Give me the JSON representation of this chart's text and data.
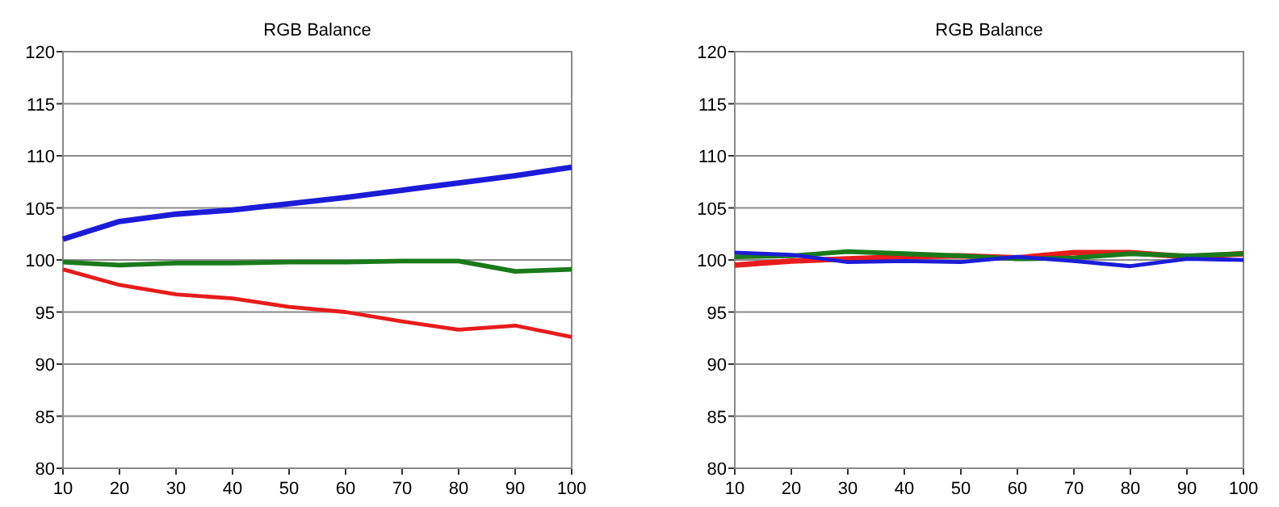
{
  "chart_data": [
    {
      "type": "line",
      "title": "RGB Balance",
      "x": [
        10,
        20,
        30,
        40,
        50,
        60,
        70,
        80,
        90,
        100
      ],
      "xlim": [
        10,
        100
      ],
      "xticks": [
        10,
        20,
        30,
        40,
        50,
        60,
        70,
        80,
        90,
        100
      ],
      "ylim": [
        80,
        120
      ],
      "yticks": [
        80,
        85,
        90,
        95,
        100,
        105,
        110,
        115,
        120
      ],
      "grid": "y",
      "series": [
        {
          "color": "#1c1cd8",
          "values": [
            102,
            103.7,
            104.4,
            104.8,
            105.4,
            106,
            106.7,
            107.4,
            108.1,
            108.9
          ]
        },
        {
          "color": "#1a7a1a",
          "values": [
            99.8,
            99.5,
            99.7,
            99.7,
            99.8,
            99.8,
            99.9,
            99.9,
            98.9,
            99.1
          ]
        },
        {
          "color": "#e81c1c",
          "values": [
            99.1,
            97.6,
            96.7,
            96.3,
            95.5,
            95,
            94.1,
            93.3,
            93.7,
            92.6
          ]
        }
      ]
    },
    {
      "type": "line",
      "title": "RGB Balance",
      "x": [
        10,
        20,
        30,
        40,
        50,
        60,
        70,
        80,
        90,
        100
      ],
      "xlim": [
        10,
        100
      ],
      "xticks": [
        10,
        20,
        30,
        40,
        50,
        60,
        70,
        80,
        90,
        100
      ],
      "ylim": [
        80,
        120
      ],
      "yticks": [
        80,
        85,
        90,
        95,
        100,
        105,
        110,
        115,
        120
      ],
      "grid": "y",
      "series": [
        {
          "color": "#e81c1c",
          "values": [
            99.5,
            99.9,
            100.1,
            100.3,
            100.4,
            100.2,
            100.7,
            100.7,
            100.3,
            100.6
          ]
        },
        {
          "color": "#1a7a1a",
          "values": [
            100.3,
            100.4,
            100.8,
            100.6,
            100.4,
            100.1,
            100.2,
            100.6,
            100.4,
            100.6
          ]
        },
        {
          "color": "#1c1cd8",
          "values": [
            100.7,
            100.5,
            99.8,
            99.9,
            99.8,
            100.3,
            99.9,
            99.4,
            100.1,
            100
          ]
        }
      ]
    }
  ]
}
